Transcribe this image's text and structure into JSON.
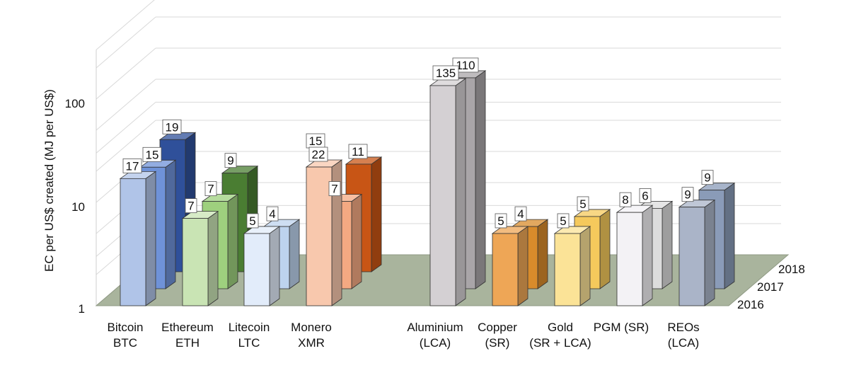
{
  "chart_data": {
    "type": "bar",
    "ylabel": "EC per US$ created (MJ per US$)",
    "yscale": "log",
    "ylim": [
      1,
      300
    ],
    "yticks": [
      "1",
      "10",
      "100"
    ],
    "years": [
      "2016",
      "2017",
      "2018"
    ],
    "categories": [
      {
        "line1": "Bitcoin",
        "line2": "BTC"
      },
      {
        "line1": "Ethereum",
        "line2": "ETH"
      },
      {
        "line1": "Litecoin",
        "line2": "LTC"
      },
      {
        "line1": "Monero",
        "line2": "XMR"
      },
      {
        "line1": "Aluminium",
        "line2": "(LCA)"
      },
      {
        "line1": "Copper",
        "line2": "(SR)"
      },
      {
        "line1": "Gold",
        "line2": "(SR + LCA)"
      },
      {
        "line1": "PGM (SR)",
        "line2": ""
      },
      {
        "line1": "REOs",
        "line2": "(LCA)"
      }
    ],
    "series": [
      {
        "year": "2016",
        "values": [
          17,
          7,
          5,
          22,
          135,
          5,
          5,
          8,
          9
        ],
        "labels": [
          "17",
          "7",
          "5",
          "22",
          "135",
          "5",
          "5",
          "8",
          "9"
        ]
      },
      {
        "year": "2017",
        "values": [
          15,
          7,
          4,
          7,
          110,
          4,
          5,
          6,
          9
        ],
        "labels": [
          "15",
          "7",
          "4",
          "7",
          "110",
          "4",
          "5",
          "6",
          "9"
        ]
      },
      {
        "year": "2018",
        "values": [
          19,
          9,
          null,
          11,
          null,
          null,
          null,
          null,
          null
        ],
        "labels": [
          "19",
          "9",
          "",
          "11",
          "",
          "",
          "",
          "",
          ""
        ]
      }
    ],
    "extra_labels": [
      {
        "category": 3,
        "text": "15"
      }
    ],
    "colors": {
      "Bitcoin": [
        "#b0c4e8",
        "#6f92d8",
        "#2f509a"
      ],
      "Ethereum": [
        "#c9e4b4",
        "#9ed07e",
        "#4a7d32"
      ],
      "Litecoin": [
        "#e2ecfa",
        "#bdd3ee",
        null
      ],
      "Monero": [
        "#f8c8ad",
        "#f4a982",
        "#c85515"
      ],
      "Aluminium": [
        "#d4d0d3",
        "#a9a5a8",
        null
      ],
      "Copper": [
        "#eea656",
        "#d88b2b",
        null
      ],
      "Gold": [
        "#fbe397",
        "#f5c95c",
        null
      ],
      "PGM (SR)": [
        "#f3f2f5",
        "#dcdcdc",
        null
      ],
      "REOs": [
        "#aab4c8",
        "#8a9bb8",
        null
      ],
      "floor": "#a9b49d"
    }
  }
}
